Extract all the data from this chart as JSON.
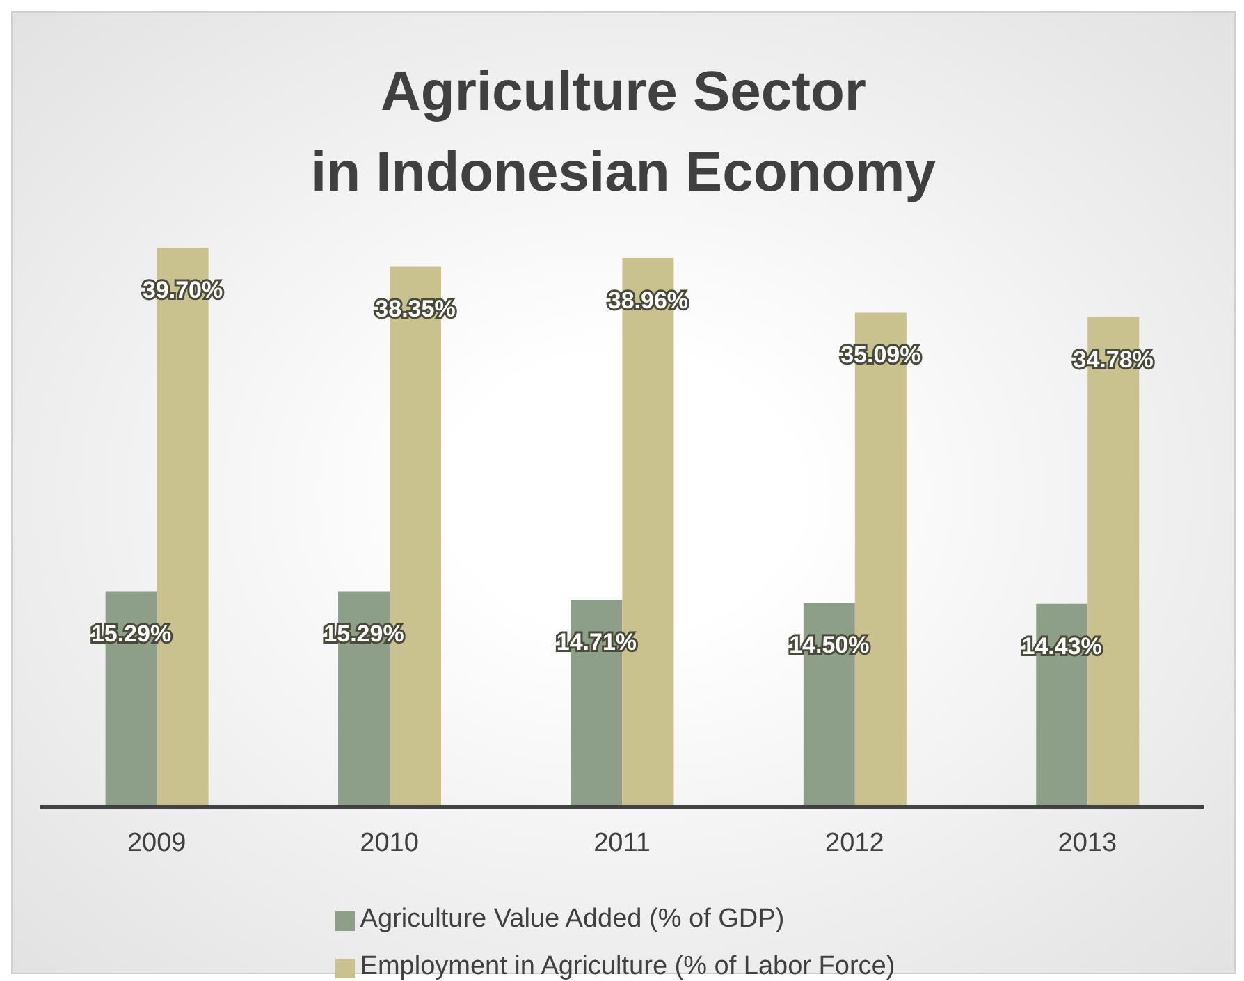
{
  "chart_data": {
    "type": "bar",
    "title": "Agriculture Sector\nin Indonesian Economy",
    "categories": [
      "2009",
      "2010",
      "2011",
      "2012",
      "2013"
    ],
    "series": [
      {
        "name": "Agriculture Value Added (% of GDP)",
        "color": "#8d9f88",
        "values": [
          15.29,
          15.29,
          14.71,
          14.5,
          14.43
        ],
        "value_labels": [
          "15.29%",
          "15.29%",
          "14.71%",
          "14.50%",
          "14.43%"
        ]
      },
      {
        "name": "Employment in Agriculture (% of Labor Force)",
        "color": "#c9c28f",
        "values": [
          39.7,
          38.35,
          38.96,
          35.09,
          34.78
        ],
        "value_labels": [
          "39.70%",
          "38.35%",
          "38.96%",
          "35.09%",
          "34.78%"
        ]
      }
    ],
    "tick_labels": "x",
    "legend": "bottom"
  }
}
